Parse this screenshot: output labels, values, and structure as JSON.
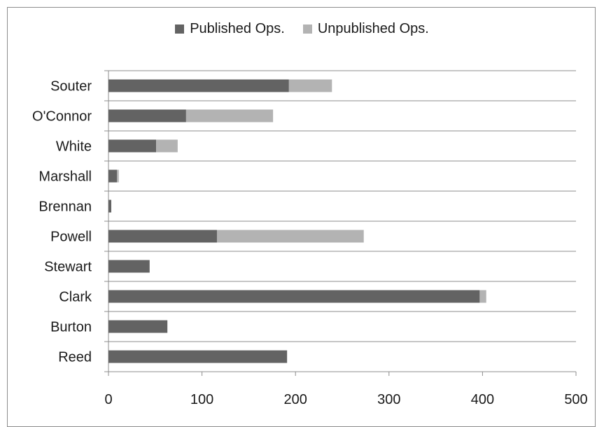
{
  "chart_data": {
    "type": "bar",
    "orientation": "horizontal",
    "stacked": true,
    "categories": [
      "Souter",
      "O'Connor",
      "White",
      "Marshall",
      "Brennan",
      "Powell",
      "Stewart",
      "Clark",
      "Burton",
      "Reed"
    ],
    "series": [
      {
        "name": "Published Ops.",
        "color": "#636363",
        "values": [
          193,
          83,
          51,
          9,
          3,
          116,
          44,
          397,
          63,
          191
        ]
      },
      {
        "name": "Unpublished Ops.",
        "color": "#b3b3b3",
        "values": [
          46,
          93,
          23,
          2,
          0,
          157,
          0,
          7,
          0,
          0
        ]
      }
    ],
    "xlim": [
      0,
      500
    ],
    "xticks": [
      "0",
      "100",
      "200",
      "300",
      "400",
      "500"
    ],
    "title": "",
    "xlabel": "",
    "ylabel": "",
    "grid": "horizontal",
    "legend_position": "top"
  }
}
